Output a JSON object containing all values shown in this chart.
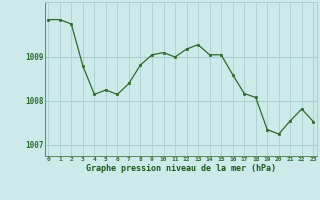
{
  "x": [
    0,
    1,
    2,
    3,
    4,
    5,
    6,
    7,
    8,
    9,
    10,
    11,
    12,
    13,
    14,
    15,
    16,
    17,
    18,
    19,
    20,
    21,
    22,
    23
  ],
  "y": [
    1009.85,
    1009.85,
    1009.75,
    1008.8,
    1008.15,
    1008.25,
    1008.15,
    1008.4,
    1008.82,
    1009.05,
    1009.1,
    1009.0,
    1009.18,
    1009.28,
    1009.05,
    1009.05,
    1008.6,
    1008.17,
    1008.08,
    1007.35,
    1007.25,
    1007.55,
    1007.82,
    1007.53
  ],
  "line_color": "#2d6a2d",
  "marker_color": "#2d6a2d",
  "bg_color": "#cceaea",
  "grid_color": "#aacece",
  "xlabel": "Graphe pression niveau de la mer (hPa)",
  "xlabel_color": "#1a5a1a",
  "tick_color": "#2d6a2d",
  "ylim": [
    1006.75,
    1010.25
  ],
  "yticks": [
    1007,
    1008,
    1009
  ],
  "xticks": [
    0,
    1,
    2,
    3,
    4,
    5,
    6,
    7,
    8,
    9,
    10,
    11,
    12,
    13,
    14,
    15,
    16,
    17,
    18,
    19,
    20,
    21,
    22,
    23
  ],
  "xlim": [
    -0.3,
    23.3
  ]
}
